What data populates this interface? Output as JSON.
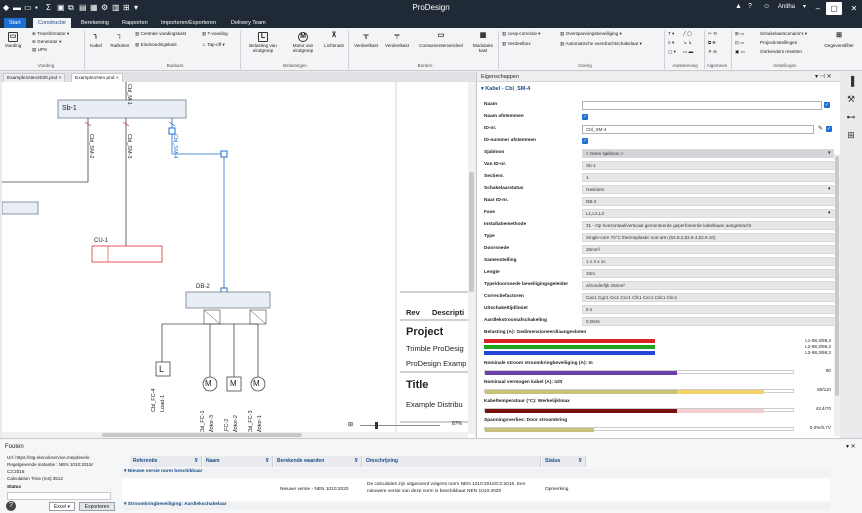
{
  "app": {
    "title": "ProDesign",
    "user": "Anitha",
    "user_icon": "person-icon",
    "help_icon": "help-icon"
  },
  "tabs": [
    "Start",
    "Constructie",
    "Berekening",
    "Rapporten",
    "Importeren/Exporteren",
    "Delivery Team"
  ],
  "ribbon": {
    "voeding": {
      "group": "Voeding",
      "big": "Voeding",
      "items": [
        "Transformator",
        "Generator",
        "UPS"
      ]
    },
    "kabel": "Kabel",
    "railkoker": "Railkoker",
    "busbars": {
      "group": "Busbars",
      "items": [
        "Centrale voedingskast",
        "Eindvoedingskast",
        "T-voeding",
        "Tap-off"
      ]
    },
    "belastingen": {
      "group": "Belastingen",
      "belasting": "Belasting van eindgroep",
      "motor": "Motor van eindgroep",
      "lichtmast": "Lichtmast"
    },
    "borden": {
      "group": "Borden",
      "items": [
        "Verdeelkast",
        "Verdeelkast",
        "Consumentenverdeel",
        "Modulaire kast"
      ]
    },
    "overig": {
      "group": "Overig",
      "items": [
        "cosφ-correctie",
        "Verdeelbox",
        "Overspanningsbeveiliging",
        "Automatische overdrachtschakelaar"
      ]
    },
    "aantekening": "Aantekening",
    "algemeen": "Algemeen",
    "instellingen": {
      "group": "Instellingen",
      "items": [
        "Schakelaarscenario's",
        "Projectinstellingen",
        "Oorkenders resetten"
      ],
      "gegevens": "Gegevensfilter"
    }
  },
  "doc_tabs": [
    "Example1Nen2020.pnd",
    "Example1Nen.pnd"
  ],
  "diagram": {
    "top_cable": "Cbl_M-1",
    "sb": "Sb-1",
    "cables": [
      "Cbl_SM-2",
      "Cbl_SM-3",
      "Cbl_SM-4"
    ],
    "cu": "CU-1",
    "db": "DB-2",
    "loads": [
      "Cbl_FC-4",
      "Load-1",
      "Cbl_FC-1",
      "Motor-3",
      "_FC-2",
      "Motor-2",
      "Cbl_FC-3",
      "Motor-1"
    ],
    "load_symbol": "L",
    "motor_symbol": "M",
    "titleblock": {
      "rev": "Rev",
      "descr": "Descripti",
      "project_label": "Project",
      "project_line1": "Trimble ProDesig",
      "project_line2": "ProDesign Examp",
      "title_label": "Title",
      "title_line": "Example Distribu"
    },
    "zoom": "87%"
  },
  "properties": {
    "panel_title": "Eigenschappen",
    "section": "Kabel - Cbl_SM-4",
    "rows": [
      {
        "label": "Naam",
        "value": ""
      },
      {
        "label": "Naam afstemmen",
        "value": ""
      },
      {
        "label": "ID-nr.",
        "value": "Cbl_SM-4"
      },
      {
        "label": "ID-nummer afstemmen",
        "value": ""
      },
      {
        "label": "Sjabloon",
        "value": "< Geen sjabloon >"
      },
      {
        "label": "Van ID-nr.",
        "value": "Sb-1"
      },
      {
        "label": "Sectienr.",
        "value": "1"
      },
      {
        "label": "Schakelaarstatus",
        "value": "Gesloten"
      },
      {
        "label": "Naar ID-nr.",
        "value": "DB-2"
      },
      {
        "label": "Fase",
        "value": "L1,L2,L3"
      },
      {
        "label": "Installatiemethode",
        "value": "31 - Op horizontaal/verticaal gemonteerde geperforeerde kabelbaan aangebracht"
      },
      {
        "label": "Type",
        "value": "Single-core 70°C thermoplastic non-arm (52.8.2,52.8.4,52.8.10)"
      },
      {
        "label": "Doorsnede",
        "value": "25mm²"
      },
      {
        "label": "Samenstelling",
        "value": "1 x 4 x 1c"
      },
      {
        "label": "Lengte",
        "value": "10m"
      },
      {
        "label": "Type/doorsnede beveiligingsgeleider",
        "value": "afzonderlijk 25mm²"
      },
      {
        "label": "Correctiefactoren",
        "value": "Cac1 Cgc1 Cic1 Ccc1 Cfc1 Cxc1 Cdc1 Ckc1"
      },
      {
        "label": "Uitschakeltijdlimiet",
        "value": "5 s"
      },
      {
        "label": "Aardlekstroomafschakeling",
        "value": "0,063s"
      }
    ],
    "belasting_title": "Belasting (A): Gedimensioneerd/aangesloten",
    "belasting": [
      {
        "label": "L1-98,3/98,3",
        "fraction": 0.55,
        "color": "#d42424"
      },
      {
        "label": "L2-98,3/98,3",
        "fraction": 0.55,
        "color": "#1fa51f"
      },
      {
        "label": "L3-98,3/98,3",
        "fraction": 0.55,
        "color": "#2646d8"
      }
    ],
    "bars": [
      {
        "title": "Nominale stroom stroomkringbeveiliging (A): In",
        "value": "80",
        "fraction": 0.62,
        "color": "#6d3fa8",
        "rest": null
      },
      {
        "title": "Nominaal vermogen kabel (A): Iz/It",
        "value": "80/110",
        "fraction": 0.62,
        "color": "#c9c07a",
        "rest": 0.9
      },
      {
        "title": "Kabeltemperatuur (°C): Werkelijk/max",
        "value": "43,4/70",
        "fraction": 0.62,
        "color": "#7a1111",
        "rest": 0.9
      },
      {
        "title": "Spanningsverlies: Door stroomkring",
        "value": "0,3%/0,7V",
        "fraction": 0.35,
        "color": "#c9c07a",
        "rest": null
      }
    ]
  },
  "errors": {
    "title": "Fouten",
    "info": [
      "Url: https://stg-elecalcservice.mepdevelo",
      "Regelgevende instantie : NEN 1010:2015/",
      "C2:2016",
      "Calculation Time (ms):3512"
    ],
    "status_label": "Status",
    "columns": [
      "Referentie",
      "Naam",
      "Berekende waarden",
      "Omschrijving",
      "Status"
    ],
    "group1": "Nieuwe versie norm beschikbaar",
    "row1": {
      "berekend": "Nieuwe versie - NEN 1010:2020",
      "omschrijving1": "De calculaties zijn uitgevoerd volgens norm NEN 1010:2015/C2:2016. Een",
      "omschrijving2": "nieuwere versie van deze norm is beschikbaar NEN 1010:2020",
      "status": "Opmerking"
    },
    "group2": "Stroomkringbeveiliging: Aardlekschakelaar",
    "export_select": "Excel",
    "export_button": "Exporteren"
  }
}
